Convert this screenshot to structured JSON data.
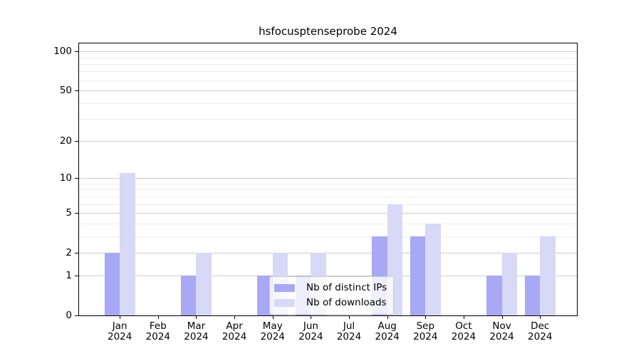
{
  "chart_data": {
    "type": "bar",
    "title": "hsfocusptenseprobe 2024",
    "categories": [
      "Jan",
      "Feb",
      "Mar",
      "Apr",
      "May",
      "Jun",
      "Jul",
      "Aug",
      "Sep",
      "Oct",
      "Nov",
      "Dec"
    ],
    "year_label": "2024",
    "series": [
      {
        "name": "Nb of distinct IPs",
        "color": "#a8a8f5",
        "values": [
          2,
          0,
          1,
          0,
          1,
          1,
          0,
          3,
          3,
          0,
          1,
          1
        ]
      },
      {
        "name": "Nb of downloads",
        "color": "#d8d8f7",
        "values": [
          11,
          0,
          2,
          0,
          2,
          2,
          0,
          6,
          4,
          0,
          2,
          3
        ]
      }
    ],
    "yscale": "log1p",
    "ylim": [
      0,
      115
    ],
    "yticks": [
      0,
      1,
      2,
      5,
      10,
      20,
      50,
      100
    ],
    "minor_yticks": [
      3,
      4,
      6,
      7,
      8,
      9,
      30,
      40,
      60,
      70,
      80,
      90
    ],
    "grid": "on",
    "legend_position": "lower-center",
    "colors": {
      "grid_major": "#cccccc",
      "grid_minor": "#ececec",
      "axis": "#000000",
      "text": "#000000",
      "legend_border": "#cccccc"
    }
  }
}
